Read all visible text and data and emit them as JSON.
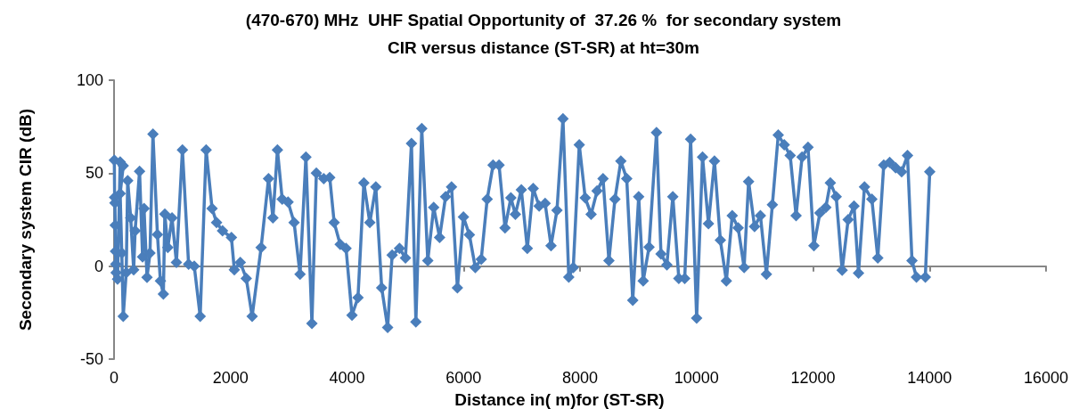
{
  "chart_data": {
    "type": "line",
    "title": "(470-670) MHz  UHF Spatial Opportunity of  37.26 %  for secondary system\nCIR versus distance (ST-SR) at ht=30m",
    "xlabel": "Distance in( m)for (ST-SR)",
    "ylabel": "Secondary system CIR (dB)",
    "x": [
      5,
      10,
      15,
      20,
      25,
      30,
      35,
      60,
      105,
      158,
      105,
      133,
      158,
      209,
      234,
      286,
      337,
      362,
      438,
      490,
      515,
      566,
      617,
      668,
      745,
      796,
      847,
      872,
      923,
      995,
      1071,
      1174,
      1280,
      1377,
      1479,
      1581,
      1683,
      1760,
      1862,
      2015,
      2065,
      2167,
      2270,
      2371,
      2525,
      2652,
      2728,
      2805,
      2887,
      2988,
      3091,
      3193,
      3294,
      3397,
      3473,
      3600,
      3703,
      3779,
      3882,
      3983,
      4085,
      4188,
      4289,
      4391,
      4494,
      4595,
      4697,
      4774,
      4901,
      5003,
      5106,
      5182,
      5283,
      5386,
      5488,
      5589,
      5692,
      5794,
      5895,
      5998,
      6100,
      6202,
      6304,
      6406,
      6507,
      6610,
      6712,
      6813,
      6890,
      6992,
      7095,
      7196,
      7298,
      7401,
      7502,
      7604,
      7707,
      7807,
      7884,
      7987,
      8089,
      8190,
      8293,
      8395,
      8496,
      8599,
      8701,
      8802,
      8905,
      9007,
      9084,
      9185,
      9313,
      9390,
      9491,
      9593,
      9696,
      9797,
      9899,
      10002,
      10103,
      10205,
      10308,
      10409,
      10512,
      10613,
      10715,
      10817,
      10894,
      10996,
      11097,
      11200,
      11302,
      11403,
      11506,
      11608,
      11709,
      11812,
      11914,
      12015,
      12118,
      12220,
      12297,
      12398,
      12500,
      12603,
      12704,
      12781,
      12883,
      13010,
      13112,
      13214,
      13316,
      13418,
      13521,
      13622,
      13699,
      13775,
      13928,
      14004
    ],
    "series": [
      {
        "color": "#4a7ebb",
        "values": [
          57,
          37,
          34,
          22,
          8,
          1,
          -3.5,
          -7,
          56,
          54,
          39,
          7,
          -27,
          -3.5,
          46,
          26,
          -2,
          19,
          51,
          5,
          31,
          -6,
          7,
          71,
          17,
          -8,
          -15,
          28,
          10,
          26,
          2,
          62.5,
          1,
          0,
          -27,
          62.5,
          31,
          23.5,
          19,
          15.4,
          -2,
          2,
          -6.6,
          -27,
          10,
          47,
          26,
          62.5,
          36,
          34.5,
          23.5,
          -4.4,
          58.7,
          -30.8,
          50,
          47,
          47.7,
          23.5,
          11.7,
          9.5,
          -26.4,
          -16.9,
          44.8,
          23.5,
          42.6,
          -11.7,
          -33,
          5.9,
          9.5,
          4.4,
          66,
          -30,
          74,
          3,
          31.6,
          15.4,
          37.4,
          42.6,
          -11.7,
          26.4,
          16.9,
          -0.7,
          3.7,
          36,
          54.3,
          54.3,
          20.6,
          36.7,
          27.9,
          41.1,
          9.5,
          41.8,
          32.3,
          33.8,
          11,
          30,
          79.3,
          -5.9,
          -0.7,
          65.3,
          36.7,
          27.9,
          40.4,
          47,
          3,
          36,
          56.5,
          47,
          -18.4,
          37.4,
          -8,
          10.3,
          71.9,
          6.6,
          0.7,
          37.4,
          -6.6,
          -6.6,
          68.3,
          -27.9,
          58.7,
          22.8,
          56.5,
          14,
          -8,
          27.2,
          20.6,
          -0.7,
          45.5,
          21.3,
          27.2,
          -4.4,
          33,
          70.5,
          65.3,
          59.5,
          27.2,
          58.7,
          63.9,
          11,
          28.6,
          31.6,
          44.8,
          37.4,
          -2.2,
          25,
          32.3,
          -3.7,
          42.6,
          36,
          4.4,
          54.3,
          55.8,
          52.9,
          50.7,
          59.5,
          3,
          -5.9,
          -5.9,
          50.7
        ]
      }
    ],
    "xlim": [
      0,
      16000
    ],
    "xticks": [
      0,
      2000,
      4000,
      6000,
      8000,
      10000,
      12000,
      14000,
      16000
    ],
    "ylim": [
      -50,
      100
    ],
    "yticks": [
      -50,
      0,
      50,
      100
    ],
    "marker": "diamond",
    "line_style": "solid"
  }
}
